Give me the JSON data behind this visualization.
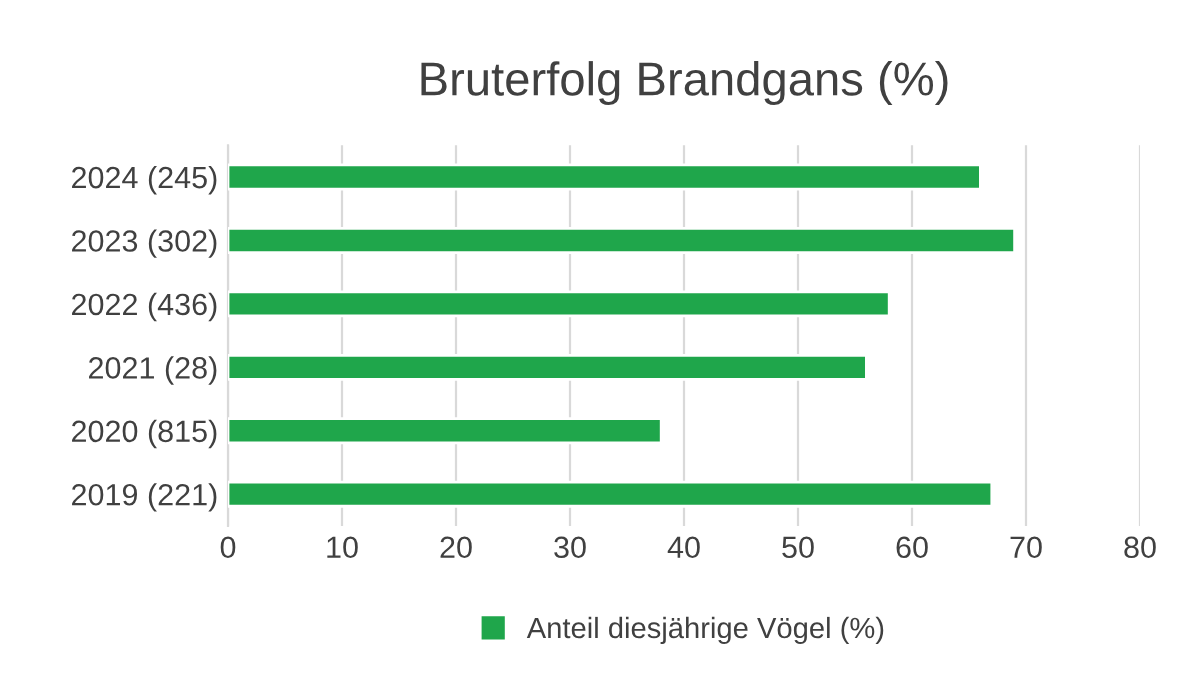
{
  "chart_data": {
    "type": "bar",
    "orientation": "horizontal",
    "title": "Bruterfolg Brandgans (%)",
    "categories": [
      "2024 (245)",
      "2023 (302)",
      "2022 (436)",
      "2021 (28)",
      "2020 (815)",
      "2019 (221)"
    ],
    "series": [
      {
        "name": "Anteil diesjährige Vögel (%)",
        "color": "#1fa64b",
        "values": [
          66,
          69,
          58,
          56,
          38,
          67
        ]
      }
    ],
    "xlim": [
      0,
      80
    ],
    "xticks": [
      0,
      10,
      20,
      30,
      40,
      50,
      60,
      70,
      80
    ],
    "grid": "x",
    "legend": "bottom"
  }
}
